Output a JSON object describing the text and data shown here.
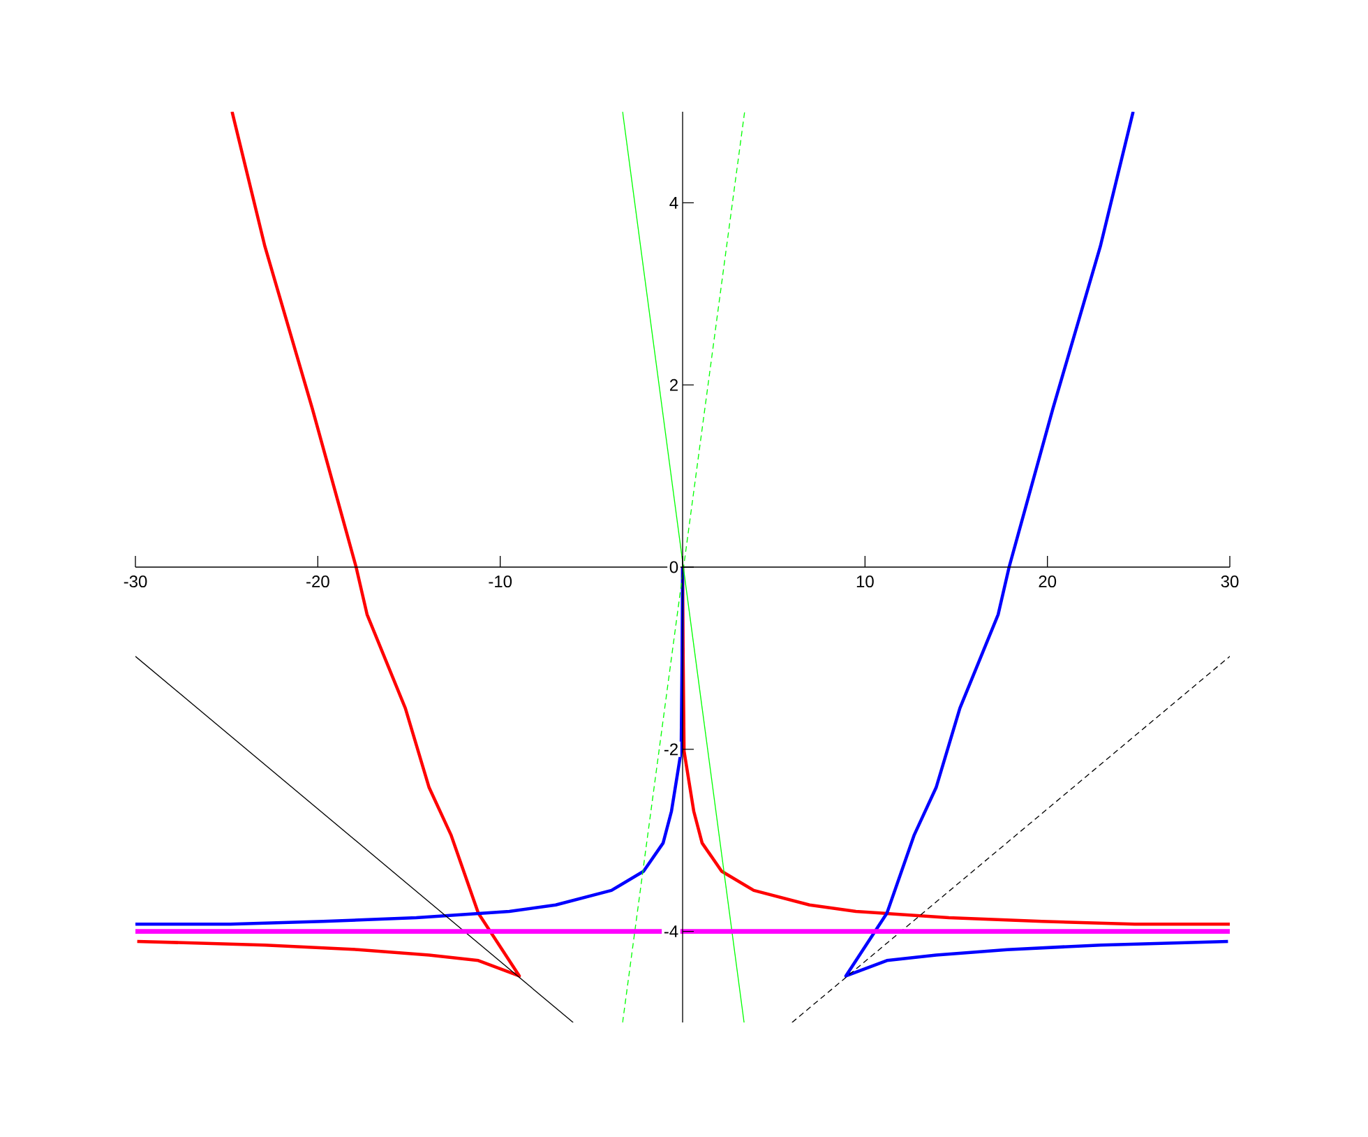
{
  "chart_data": {
    "type": "line",
    "xlim": [
      -30,
      30
    ],
    "ylim": [
      -5,
      5
    ],
    "xticks": [
      -30,
      -20,
      -10,
      {
        "value": 0,
        "label": null
      },
      10,
      20,
      30
    ],
    "yticks": [
      -4,
      -2,
      0,
      2,
      4
    ],
    "series": [
      {
        "color": "#ff0000",
        "x": [
          -29.9,
          -22.9,
          -17.8,
          -13.9,
          -11.2,
          -8.95,
          -11.2,
          -12.7,
          -13.9,
          -15.2,
          -17.3,
          -17.9,
          -20.3,
          -22.9,
          -24.7
        ],
        "values": [
          -4.11,
          -4.15,
          -4.2,
          -4.26,
          -4.32,
          -4.49,
          -3.8,
          -2.94,
          -2.42,
          -1.55,
          -0.52,
          0,
          1.74,
          3.52,
          5.0
        ]
      },
      {
        "color": "#ff0000",
        "x": [
          0,
          0.03,
          0.08,
          0.61,
          1.07,
          2.14,
          3.9,
          6.96,
          9.5,
          14.6,
          19.7,
          24.8,
          30
        ],
        "values": [
          0,
          -1.0,
          -2.02,
          -2.68,
          -3.03,
          -3.34,
          -3.55,
          -3.71,
          -3.78,
          -3.85,
          -3.89,
          -3.92,
          -3.92
        ]
      },
      {
        "color": "#0000ff",
        "x": [
          29.9,
          22.9,
          17.8,
          13.9,
          11.2,
          8.95,
          11.2,
          12.7,
          13.9,
          15.2,
          17.3,
          17.9,
          20.3,
          22.9,
          24.7
        ],
        "values": [
          -4.11,
          -4.15,
          -4.2,
          -4.26,
          -4.32,
          -4.49,
          -3.8,
          -2.94,
          -2.42,
          -1.55,
          -0.52,
          0,
          1.74,
          3.52,
          5.0
        ]
      },
      {
        "color": "#0000ff",
        "x": [
          0,
          -0.03,
          -0.08,
          -0.61,
          -1.07,
          -2.14,
          -3.9,
          -6.96,
          -9.5,
          -14.6,
          -19.7,
          -24.8,
          -30
        ],
        "values": [
          0,
          -1.0,
          -2.02,
          -2.68,
          -3.03,
          -3.34,
          -3.55,
          -3.71,
          -3.78,
          -3.85,
          -3.89,
          -3.92,
          -3.92
        ]
      },
      {
        "color": "#00ff00",
        "x": [
          -3.29,
          3.37
        ],
        "values": [
          5,
          -5
        ]
      },
      {
        "color": "#00ff00",
        "line_style": "dashed",
        "x": [
          -3.29,
          3.4
        ],
        "values": [
          -5,
          5
        ]
      },
      {
        "color": "#000000",
        "x": [
          -30,
          -6
        ],
        "values": [
          -0.98,
          -5
        ]
      },
      {
        "color": "#000000",
        "line_style": "dashed",
        "x": [
          6,
          30
        ],
        "values": [
          -5,
          -0.98
        ]
      }
    ],
    "ref_lines": [
      {
        "axis": "y",
        "value": -4,
        "color": "#ff00ff"
      }
    ]
  }
}
